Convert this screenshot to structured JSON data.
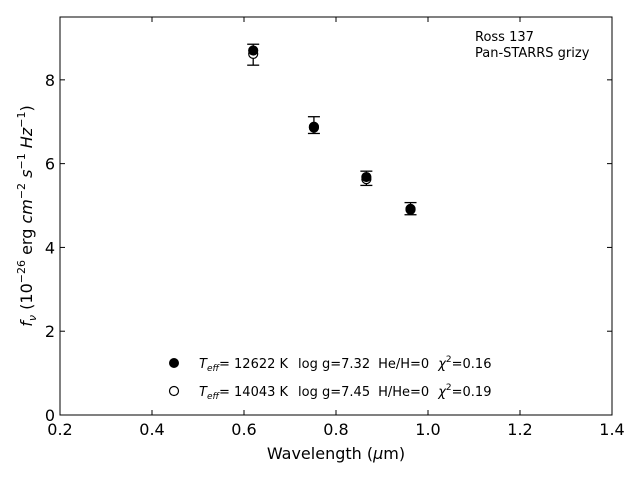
{
  "chart_data": {
    "type": "scatter",
    "xlabel": "Wavelength (μm)",
    "ylabel": "f_ν (10^-26 erg cm^-2 s^-1 Hz^-1)",
    "xlim": [
      0.2,
      1.4
    ],
    "ylim": [
      0,
      9.5
    ],
    "x_ticks": [
      "0.2",
      "0.4",
      "0.6",
      "0.8",
      "1.0",
      "1.2",
      "1.4"
    ],
    "y_ticks": [
      "0",
      "2",
      "4",
      "6",
      "8"
    ],
    "grid": false,
    "annotation": [
      "Ross 137",
      "Pan-STARRS grizy"
    ],
    "observed": {
      "x": [
        0.62,
        0.752,
        0.866,
        0.962
      ],
      "y": [
        8.6,
        6.91,
        5.65,
        4.93
      ],
      "yerr_low": [
        8.35,
        6.72,
        5.48,
        4.78
      ],
      "yerr_high": [
        8.85,
        7.12,
        5.82,
        5.07
      ]
    },
    "series": [
      {
        "marker": "filled-circle",
        "x": [
          0.62,
          0.752,
          0.866,
          0.962
        ],
        "y": [
          8.7,
          6.88,
          5.68,
          4.9
        ]
      },
      {
        "marker": "open-circle",
        "x": [
          0.62,
          0.752,
          0.866,
          0.962
        ],
        "y": [
          8.62,
          6.86,
          5.63,
          4.92
        ]
      }
    ],
    "legend": {
      "placement": "bottom-center",
      "entries": [
        {
          "marker": "filled-circle",
          "teff_sym": "T",
          "teff_sub": "eff",
          "teff": "= 12622 K",
          "logg": "log g=7.32",
          "comp": "He/H=0",
          "chi_sym": "χ",
          "chi_sup": "2",
          "chi": "=0.16"
        },
        {
          "marker": "open-circle",
          "teff_sym": "T",
          "teff_sub": "eff",
          "teff": "= 14043 K",
          "logg": "log g=7.45",
          "comp": "H/He=0",
          "chi_sym": "χ",
          "chi_sup": "2",
          "chi": "=0.19"
        }
      ]
    }
  }
}
